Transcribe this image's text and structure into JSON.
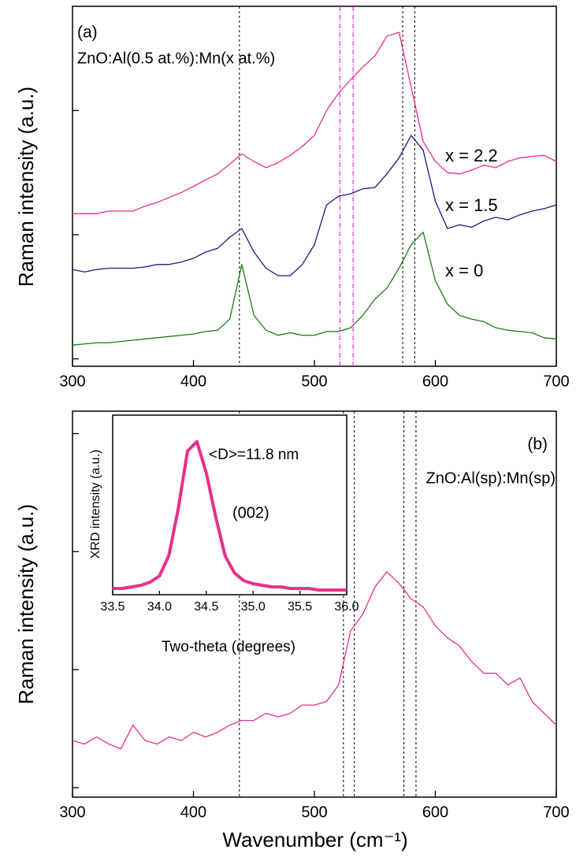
{
  "chart_data": [
    {
      "type": "line",
      "panel_label": "(a)",
      "title": "ZnO:Al(0.5 at.%):Mn(x at.%)",
      "y_label": "Raman intensity (a.u.)",
      "xlim": [
        300,
        700
      ],
      "xticks": [
        300,
        400,
        500,
        600,
        700
      ],
      "ylim": [
        -0.06,
        2.84
      ],
      "yticks": [
        0,
        1,
        2
      ],
      "ytick_labels": false,
      "x": [
        300,
        310,
        320,
        330,
        340,
        350,
        360,
        370,
        380,
        390,
        400,
        410,
        420,
        430,
        440,
        450,
        460,
        470,
        480,
        490,
        500,
        510,
        520,
        530,
        540,
        550,
        560,
        570,
        580,
        590,
        600,
        610,
        620,
        630,
        640,
        650,
        660,
        670,
        680,
        690,
        700
      ],
      "series": [
        {
          "name": "x = 2.2",
          "color": "#e8308a",
          "label_color": "#e8308a",
          "values": [
            1.17,
            1.17,
            1.17,
            1.19,
            1.19,
            1.19,
            1.23,
            1.26,
            1.3,
            1.34,
            1.39,
            1.44,
            1.49,
            1.57,
            1.65,
            1.59,
            1.54,
            1.58,
            1.64,
            1.71,
            1.8,
            2.0,
            2.14,
            2.25,
            2.35,
            2.44,
            2.6,
            2.63,
            2.19,
            1.75,
            1.59,
            1.5,
            1.49,
            1.52,
            1.56,
            1.54,
            1.59,
            1.62,
            1.63,
            1.64,
            1.59
          ]
        },
        {
          "name": "x = 1.5",
          "color": "#1a1a80",
          "label_color": "#1a1a80",
          "values": [
            0.72,
            0.7,
            0.72,
            0.73,
            0.73,
            0.73,
            0.74,
            0.76,
            0.76,
            0.78,
            0.81,
            0.86,
            0.89,
            0.98,
            1.05,
            0.86,
            0.73,
            0.67,
            0.67,
            0.76,
            0.92,
            1.24,
            1.31,
            1.33,
            1.37,
            1.38,
            1.49,
            1.62,
            1.8,
            1.68,
            1.27,
            1.05,
            1.08,
            1.06,
            1.11,
            1.14,
            1.12,
            1.16,
            1.19,
            1.21,
            1.24
          ]
        },
        {
          "name": "x = 0",
          "color": "#1a7a1a",
          "label_color": "#1a8a8a",
          "values": [
            0.11,
            0.12,
            0.13,
            0.13,
            0.14,
            0.15,
            0.16,
            0.17,
            0.18,
            0.19,
            0.2,
            0.22,
            0.23,
            0.32,
            0.76,
            0.35,
            0.23,
            0.19,
            0.21,
            0.19,
            0.19,
            0.22,
            0.22,
            0.25,
            0.35,
            0.48,
            0.57,
            0.73,
            0.92,
            1.02,
            0.63,
            0.44,
            0.35,
            0.32,
            0.3,
            0.25,
            0.23,
            0.22,
            0.21,
            0.17,
            0.16
          ]
        }
      ],
      "vlines": [
        {
          "x": 438,
          "color": "#000000",
          "dash": "3,3"
        },
        {
          "x": 521,
          "color": "#e000e0",
          "dash": "6,2,1,2"
        },
        {
          "x": 532,
          "color": "#e000e0",
          "dash": "6,2,1,2"
        },
        {
          "x": 573,
          "color": "#000000",
          "dash": "3,3"
        },
        {
          "x": 583,
          "color": "#000000",
          "dash": "3,3"
        }
      ]
    },
    {
      "type": "line",
      "panel_label": "(b)",
      "title": "ZnO:Al(sp):Mn(sp)",
      "y_label": "Raman intensity (a.u.)",
      "x_label": "Wavenumber (cm⁻¹)",
      "xlim": [
        300,
        700
      ],
      "xticks": [
        300,
        400,
        500,
        600,
        700
      ],
      "ylim": [
        -0.08,
        3.19
      ],
      "yticks": [
        0,
        1,
        2,
        3
      ],
      "ytick_labels": false,
      "x": [
        300,
        310,
        320,
        330,
        340,
        350,
        360,
        370,
        380,
        390,
        400,
        410,
        420,
        430,
        440,
        450,
        460,
        470,
        480,
        490,
        500,
        510,
        520,
        530,
        540,
        550,
        560,
        570,
        580,
        590,
        600,
        610,
        620,
        630,
        640,
        650,
        660,
        670,
        680,
        690,
        700
      ],
      "series": [
        {
          "color": "#e8308a",
          "values": [
            0.4,
            0.37,
            0.43,
            0.37,
            0.33,
            0.53,
            0.4,
            0.37,
            0.43,
            0.4,
            0.47,
            0.43,
            0.47,
            0.53,
            0.57,
            0.57,
            0.63,
            0.6,
            0.63,
            0.7,
            0.7,
            0.73,
            0.87,
            1.33,
            1.47,
            1.7,
            1.83,
            1.73,
            1.6,
            1.53,
            1.37,
            1.27,
            1.2,
            1.07,
            0.97,
            0.97,
            0.87,
            0.93,
            0.73,
            0.63,
            0.53
          ]
        }
      ],
      "vlines": [
        {
          "x": 438,
          "color": "#000000",
          "dash": "3,3"
        },
        {
          "x": 524,
          "color": "#000000",
          "dash": "3,3"
        },
        {
          "x": 533,
          "color": "#000000",
          "dash": "3,3"
        },
        {
          "x": 574,
          "color": "#000000",
          "dash": "3,3"
        },
        {
          "x": 584,
          "color": "#000000",
          "dash": "3,3"
        }
      ]
    },
    {
      "type": "line",
      "annotation": "<D>=11.8 nm",
      "peak_label": "(002)",
      "y_label": "XRD intensity (a.u.)",
      "x_label": "Two-theta (degrees)",
      "xlim": [
        33.5,
        36.0
      ],
      "xticks": [
        33.5,
        {
          "value": 34.0,
          "label": "34.0"
        },
        34.5,
        {
          "value": 35.0,
          "label": "35.0"
        },
        35.5,
        {
          "value": 36.0,
          "label": "36.0"
        }
      ],
      "ylim": [
        0,
        1.15
      ],
      "x": [
        33.5,
        33.6,
        33.7,
        33.8,
        33.9,
        34.0,
        34.1,
        34.2,
        34.3,
        34.4,
        34.5,
        34.6,
        34.7,
        34.8,
        34.9,
        35.0,
        35.1,
        35.2,
        35.3,
        35.4,
        35.5,
        35.6,
        35.7,
        35.8,
        35.9,
        36.0
      ],
      "series": [
        {
          "color": "#e8308a",
          "values": [
            0.04,
            0.04,
            0.05,
            0.06,
            0.08,
            0.12,
            0.25,
            0.55,
            0.92,
            0.98,
            0.78,
            0.5,
            0.25,
            0.14,
            0.09,
            0.07,
            0.06,
            0.05,
            0.05,
            0.04,
            0.04,
            0.04,
            0.03,
            0.03,
            0.03,
            0.03
          ]
        }
      ]
    }
  ]
}
